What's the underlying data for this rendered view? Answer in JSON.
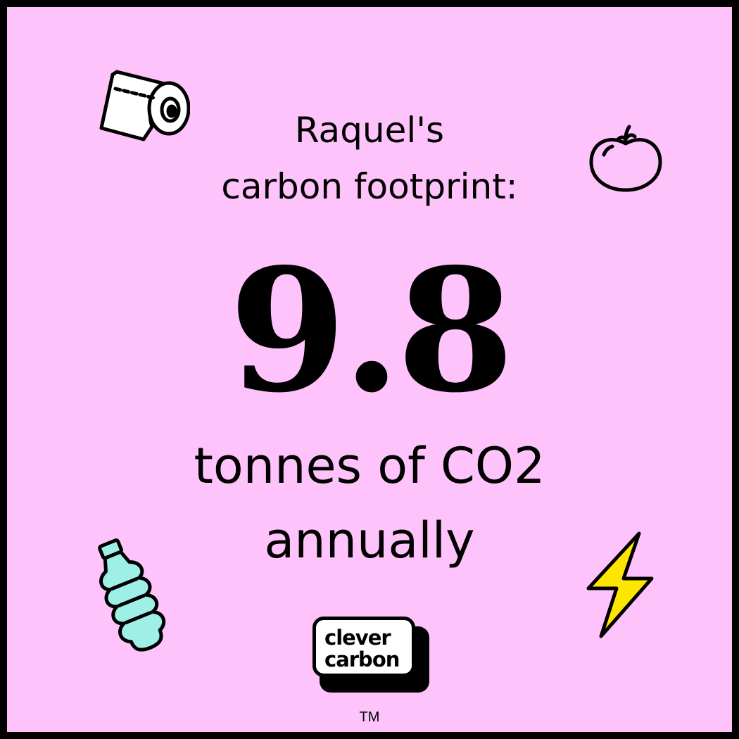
{
  "heading": {
    "line1": "Raquel's",
    "line2": "carbon footprint:"
  },
  "footprint": {
    "value": "9.8",
    "unit_line1": "tonnes of CO2",
    "unit_line2": "annually"
  },
  "logo": {
    "line1": "clever",
    "line2": "carbon"
  },
  "trademark": "TM",
  "colors": {
    "background": "#ffc3fb",
    "border": "#000000",
    "bottle": "#9ef0e6",
    "bolt": "#ffe600"
  },
  "icons": [
    "toilet-paper-icon",
    "tomato-icon",
    "water-bottle-icon",
    "lightning-bolt-icon"
  ]
}
